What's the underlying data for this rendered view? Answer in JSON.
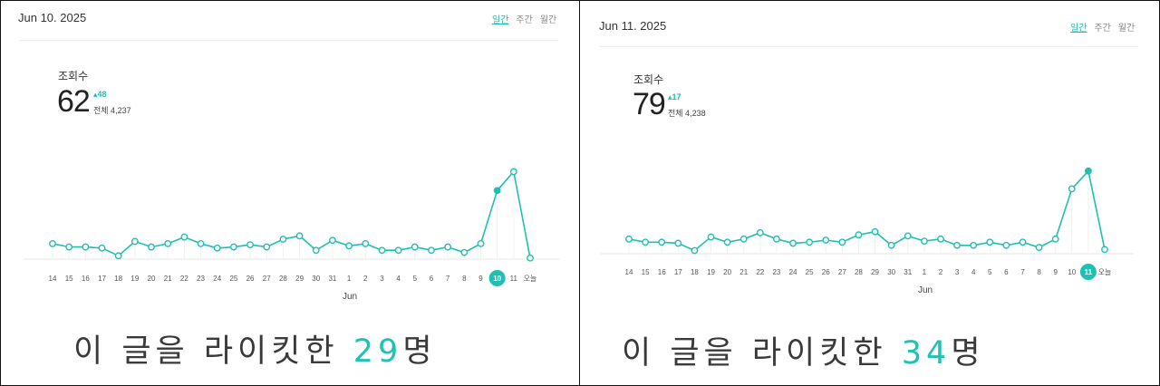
{
  "panels": [
    {
      "date": "Jun 10. 2025",
      "tabs": [
        "일간",
        "주간",
        "월간"
      ],
      "metric_label": "조회수",
      "metric_value": "62",
      "metric_delta": "▴48",
      "metric_total": "전체 4,237",
      "xlabel": "Jun",
      "caption": {
        "prefix": "이 글을 라이킷한 ",
        "count": "29",
        "suffix": "명"
      }
    },
    {
      "date": "Jun 11. 2025",
      "tabs": [
        "일간",
        "주간",
        "월간"
      ],
      "metric_label": "조회수",
      "metric_value": "79",
      "metric_delta": "▴17",
      "metric_total": "전체 4,238",
      "xlabel": "Jun",
      "caption": {
        "prefix": "이 글을 라이킷한 ",
        "count": "34",
        "suffix": "명"
      }
    }
  ],
  "chart_data": [
    {
      "type": "line",
      "x": [
        "14",
        "15",
        "16",
        "17",
        "18",
        "19",
        "20",
        "21",
        "22",
        "23",
        "24",
        "25",
        "26",
        "27",
        "28",
        "29",
        "30",
        "31",
        "1",
        "2",
        "3",
        "4",
        "5",
        "6",
        "7",
        "8",
        "9",
        "10",
        "11",
        "오늘"
      ],
      "series": [
        {
          "values": [
            14,
            11,
            11,
            10,
            3,
            16,
            11,
            14,
            20,
            14,
            10,
            11,
            13,
            11,
            18,
            21,
            8,
            17,
            12,
            14,
            8,
            8,
            11,
            8,
            11,
            6,
            14,
            62,
            79,
            1
          ]
        }
      ],
      "highlight": "10",
      "xlabel": "Jun",
      "ylim": [
        0,
        90
      ],
      "color": "#1fbfb1"
    },
    {
      "type": "line",
      "x": [
        "14",
        "15",
        "16",
        "17",
        "18",
        "19",
        "20",
        "21",
        "22",
        "23",
        "24",
        "25",
        "26",
        "27",
        "28",
        "29",
        "30",
        "31",
        "1",
        "2",
        "3",
        "4",
        "5",
        "6",
        "7",
        "8",
        "9",
        "10",
        "11",
        "오늘"
      ],
      "series": [
        {
          "values": [
            14,
            11,
            11,
            10,
            3,
            16,
            11,
            14,
            20,
            14,
            10,
            11,
            13,
            11,
            18,
            21,
            8,
            17,
            12,
            14,
            8,
            8,
            11,
            8,
            11,
            6,
            14,
            62,
            79,
            4
          ]
        }
      ],
      "highlight": "11",
      "xlabel": "Jun",
      "ylim": [
        0,
        90
      ],
      "color": "#1fbfb1"
    }
  ]
}
